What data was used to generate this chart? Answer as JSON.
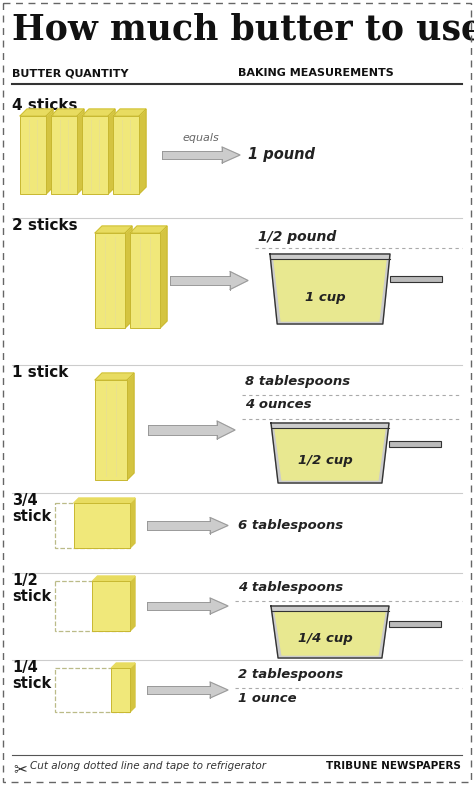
{
  "title": "How much butter to use?",
  "col_left": "BUTTER QUANTITY",
  "col_right": "BAKING MEASUREMENTS",
  "bg_color": "#ffffff",
  "butter_yellow": "#f0e87a",
  "butter_yellow_light": "#f5f0a0",
  "butter_top": "#e8dc60",
  "butter_side": "#d4c440",
  "butter_edge": "#c8b830",
  "pan_body": "#d8d8d8",
  "pan_outline": "#444444",
  "pan_rim_light": "#f0f0f0",
  "pan_fill_color": "#e8e870",
  "arrow_light": "#e0e0e0",
  "arrow_dark": "#aaaaaa",
  "text_dark": "#111111",
  "text_measure": "#222222",
  "sep_color": "#aaaaaa",
  "rows": [
    {
      "label": "4 sticks",
      "label2": "",
      "n_sticks": 4,
      "style": "full",
      "arrow_label": "equals",
      "meas": [
        "1 pound"
      ],
      "cup": false,
      "cup_label": ""
    },
    {
      "label": "2 sticks",
      "label2": "",
      "n_sticks": 2,
      "style": "full",
      "arrow_label": "",
      "meas": [
        "1/2 pound",
        "1 cup"
      ],
      "cup": true,
      "cup_label": "1 cup"
    },
    {
      "label": "1 stick",
      "label2": "",
      "n_sticks": 1,
      "style": "full",
      "arrow_label": "",
      "meas": [
        "8 tablespoons",
        "4 ounces",
        "1/2 cup"
      ],
      "cup": true,
      "cup_label": "1/2 cup"
    },
    {
      "label": "3/4",
      "label2": "stick",
      "n_sticks": 1,
      "style": "three_quarter",
      "arrow_label": "",
      "meas": [
        "6 tablespoons"
      ],
      "cup": false,
      "cup_label": ""
    },
    {
      "label": "1/2",
      "label2": "stick",
      "n_sticks": 1,
      "style": "half",
      "arrow_label": "",
      "meas": [
        "4 tablespoons",
        "1/4 cup"
      ],
      "cup": true,
      "cup_label": "1/4 cup"
    },
    {
      "label": "1/4",
      "label2": "stick",
      "n_sticks": 1,
      "style": "quarter",
      "arrow_label": "",
      "meas": [
        "2 tablespoons",
        "1 ounce"
      ],
      "cup": false,
      "cup_label": ""
    }
  ],
  "footer_text": "Cut along dotted line and tape to refrigerator",
  "footer_brand": "TRIBUNE NEWSPAPERS",
  "row_tops": [
    98,
    218,
    365,
    493,
    573,
    660
  ],
  "row_bottoms": [
    218,
    365,
    493,
    573,
    660,
    750
  ]
}
